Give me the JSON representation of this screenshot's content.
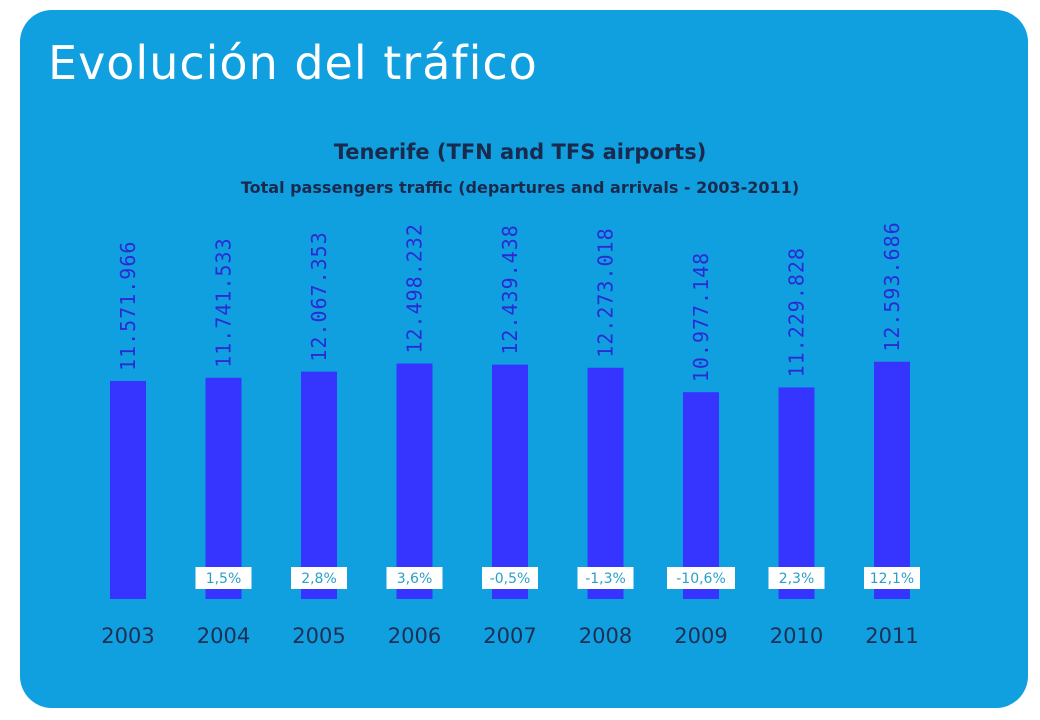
{
  "page": {
    "title": "Evolución del tráfico"
  },
  "chart_data": {
    "type": "bar",
    "title": "Tenerife (TFN and TFS airports)",
    "subtitle": "Total passengers traffic (departures and arrivals - 2003-2011)",
    "categories": [
      "2003",
      "2004",
      "2005",
      "2006",
      "2007",
      "2008",
      "2009",
      "2010",
      "2011"
    ],
    "values": [
      11571966,
      11741533,
      12067353,
      12498232,
      12439438,
      12273018,
      10977148,
      11229828,
      12593686
    ],
    "value_labels": [
      "11.571.966",
      "11.741.533",
      "12.067.353",
      "12.498.232",
      "12.439.438",
      "12.273.018",
      "10.977.148",
      "11.229.828",
      "12.593.686"
    ],
    "growth_labels": [
      "",
      "1,5%",
      "2,8%",
      "3,6%",
      "-0,5%",
      "-1,3%",
      "-10,6%",
      "2,3%",
      "12,1%"
    ],
    "bar_color": "#3535ff",
    "background_color": "#109fdf",
    "ylim": [
      0,
      13800000
    ]
  }
}
